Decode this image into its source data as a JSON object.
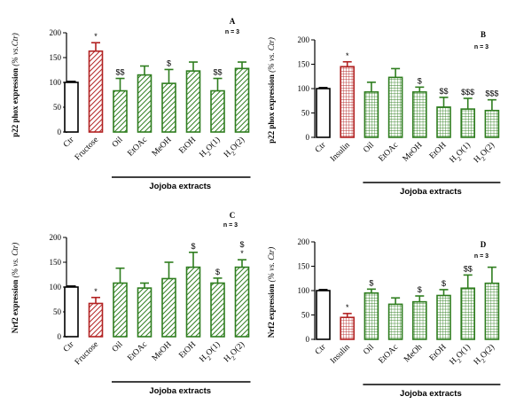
{
  "colors": {
    "control": "#000000",
    "disease": "#b22222",
    "jojoba": "#2e7d1e"
  },
  "chart_data": [
    {
      "type": "bar",
      "panel_letter": "A",
      "n_label": "n = 3",
      "ylabel_main": "p22 phox expression ",
      "ylabel_italic": "(% vs.Ctr)",
      "ylim": [
        0,
        200
      ],
      "yticks": [
        "0",
        "50",
        "100",
        "150",
        "200"
      ],
      "pattern": "hatch",
      "categories": [
        "Ctr",
        "Fructose",
        "Oil",
        "EtOAc",
        "MeOH",
        "EtOH",
        "H2O(1)",
        "H2O(2)"
      ],
      "category_labels": [
        {
          "main": "Ctr"
        },
        {
          "main": "Fructose"
        },
        {
          "main": "Oil"
        },
        {
          "main": "EtOAc"
        },
        {
          "main": "MeOH"
        },
        {
          "main": "EtOH"
        },
        {
          "main": "H",
          "sub": "2",
          "rest": "O(1)"
        },
        {
          "main": "H",
          "sub": "2",
          "rest": "O(2)"
        }
      ],
      "values": [
        100,
        163,
        83,
        115,
        98,
        123,
        83,
        128
      ],
      "errors": [
        2,
        17,
        25,
        18,
        28,
        18,
        25,
        13
      ],
      "significance": [
        "",
        "*",
        "$$",
        "",
        "$",
        "",
        "$$",
        ""
      ],
      "group_label": "Jojoba extracts"
    },
    {
      "type": "bar",
      "panel_letter": "B",
      "n_label": "n = 3",
      "ylabel_main": "p22 phox expression ",
      "ylabel_italic": "(% vs. Ctr)",
      "ylim": [
        0,
        200
      ],
      "yticks": [
        "0",
        "50",
        "100",
        "150",
        "200"
      ],
      "pattern": "grid",
      "categories": [
        "Ctr",
        "Insulin",
        "Oil",
        "EtOAc",
        "MeOH",
        "EtOH",
        "H2O(1)",
        "H2O(2)"
      ],
      "category_labels": [
        {
          "main": "Ctr"
        },
        {
          "main": "Insulin"
        },
        {
          "main": "Oil"
        },
        {
          "main": "EtOAc"
        },
        {
          "main": "MeOH"
        },
        {
          "main": "EtOH"
        },
        {
          "main": "H",
          "sub": "2",
          "rest": "O(1)"
        },
        {
          "main": "H",
          "sub": "2",
          "rest": "O(2)"
        }
      ],
      "values": [
        100,
        145,
        93,
        123,
        93,
        62,
        58,
        55
      ],
      "errors": [
        2,
        10,
        20,
        18,
        10,
        20,
        22,
        22
      ],
      "significance": [
        "",
        "*",
        "",
        "",
        "$",
        "$$",
        "$$$",
        "$$$"
      ],
      "group_label": "Jojoba extracts"
    },
    {
      "type": "bar",
      "panel_letter": "C",
      "n_label": "n = 3",
      "ylabel_main": "Nrf2 expression ",
      "ylabel_italic": "(% vs. Ctr)",
      "ylim": [
        0,
        200
      ],
      "yticks": [
        "0",
        "50",
        "100",
        "150",
        "200"
      ],
      "pattern": "hatch",
      "categories": [
        "Ctr",
        "Fructose",
        "Oil",
        "EtOAc",
        "MeOH",
        "EtOH",
        "H2O(1)",
        "H2O(2)"
      ],
      "category_labels": [
        {
          "main": "Ctr"
        },
        {
          "main": "Fructose"
        },
        {
          "main": "Oil"
        },
        {
          "main": "EtOAc"
        },
        {
          "main": "MeOH"
        },
        {
          "main": "EtOH"
        },
        {
          "main": "H",
          "sub": "2",
          "rest": "O(1)"
        },
        {
          "main": "H",
          "sub": "2",
          "rest": "O(2)"
        }
      ],
      "values": [
        100,
        67,
        108,
        98,
        117,
        140,
        108,
        140
      ],
      "errors": [
        2,
        12,
        30,
        10,
        33,
        30,
        10,
        15
      ],
      "significance": [
        "",
        "*",
        "",
        "",
        "",
        "$",
        "$",
        "$\n*"
      ],
      "group_label": "Jojoba extracts"
    },
    {
      "type": "bar",
      "panel_letter": "D",
      "n_label": "n = 3",
      "ylabel_main": "Nrf2 expression ",
      "ylabel_italic": "(% vs. Ctr)",
      "ylim": [
        0,
        200
      ],
      "yticks": [
        "0",
        "50",
        "100",
        "150",
        "200"
      ],
      "pattern": "grid",
      "categories": [
        "Ctr",
        "Insulin",
        "Oil",
        "EtOAc",
        "MeOh",
        "EtOH",
        "H2O(1)",
        "H2O(2)"
      ],
      "category_labels": [
        {
          "main": "Ctr"
        },
        {
          "main": "Insulin"
        },
        {
          "main": "Oil"
        },
        {
          "main": "EtOAc"
        },
        {
          "main": "MeOh"
        },
        {
          "main": "EtOH"
        },
        {
          "main": "H",
          "sub": "2",
          "rest": "O(1)"
        },
        {
          "main": "H",
          "sub": "2",
          "rest": "O(2)"
        }
      ],
      "values": [
        100,
        45,
        95,
        72,
        77,
        90,
        105,
        115
      ],
      "errors": [
        2,
        8,
        8,
        13,
        12,
        12,
        27,
        33
      ],
      "significance": [
        "",
        "*",
        "$",
        "",
        "$",
        "$",
        "$$",
        ""
      ],
      "group_label": "Jojoba extracts"
    }
  ]
}
